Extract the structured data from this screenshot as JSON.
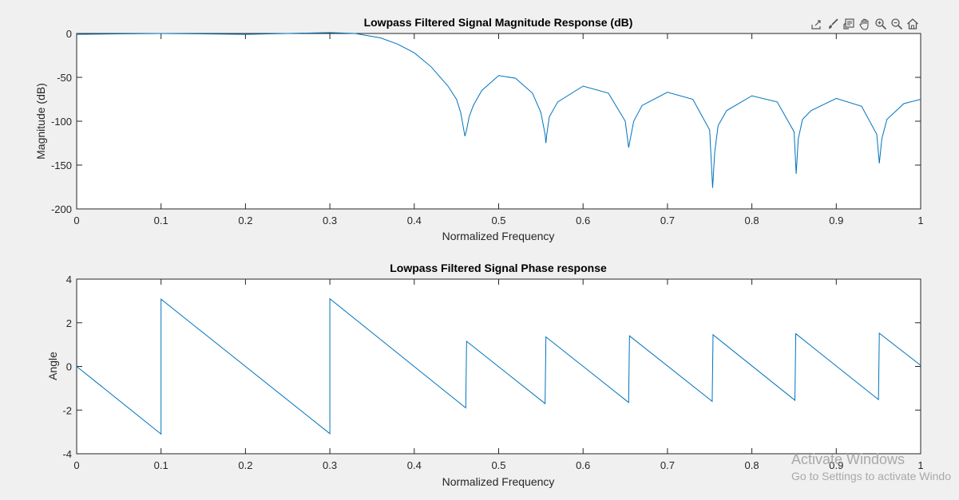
{
  "toolbar": {
    "icons": [
      "export-icon",
      "brush-icon",
      "datatip-icon",
      "pan-icon",
      "zoom-in-icon",
      "zoom-out-icon",
      "home-icon"
    ]
  },
  "watermark": {
    "title": "Activate Windows",
    "subtitle": "Go to Settings to activate Windo"
  },
  "colors": {
    "line": "#0072bd",
    "axes_bg": "#ffffff",
    "figure_bg": "#f0f0f0"
  },
  "chart_data": [
    {
      "type": "line",
      "title": "Lowpass Filtered Signal Magnitude Response (dB)",
      "xlabel": "Normalized Frequency",
      "ylabel": "Magnitude (dB)",
      "xlim": [
        0,
        1
      ],
      "ylim": [
        -200,
        0
      ],
      "xticks": [
        0,
        0.1,
        0.2,
        0.3,
        0.4,
        0.5,
        0.6,
        0.7,
        0.8,
        0.9,
        1
      ],
      "xticklabels": [
        "0",
        "0.1",
        "0.2",
        "0.3",
        "0.4",
        "0.5",
        "0.6",
        "0.7",
        "0.8",
        "0.9",
        "1"
      ],
      "yticks": [
        0,
        -50,
        -100,
        -150,
        -200
      ],
      "yticklabels": [
        "0",
        "-50",
        "-100",
        "-150",
        "-200"
      ],
      "grid": false,
      "series": [
        {
          "x": [
            0,
            0.05,
            0.1,
            0.15,
            0.2,
            0.25,
            0.3,
            0.33,
            0.36,
            0.38,
            0.4,
            0.42,
            0.44,
            0.45,
            0.455,
            0.46,
            0.462,
            0.465,
            0.47,
            0.48,
            0.5,
            0.52,
            0.54,
            0.55,
            0.555,
            0.556,
            0.557,
            0.56,
            0.57,
            0.6,
            0.63,
            0.65,
            0.654,
            0.656,
            0.66,
            0.67,
            0.7,
            0.73,
            0.75,
            0.7535,
            0.756,
            0.76,
            0.77,
            0.8,
            0.83,
            0.85,
            0.8525,
            0.855,
            0.86,
            0.87,
            0.9,
            0.93,
            0.948,
            0.951,
            0.954,
            0.96,
            0.98,
            1.0
          ],
          "y": [
            -1,
            -0.5,
            0,
            -0.5,
            -1,
            0,
            1,
            0,
            -5,
            -12,
            -22,
            -38,
            -60,
            -75,
            -90,
            -117,
            -110,
            -95,
            -82,
            -65,
            -48,
            -51,
            -68,
            -90,
            -115,
            -125,
            -115,
            -95,
            -78,
            -60,
            -68,
            -100,
            -130,
            -120,
            -100,
            -82,
            -67,
            -75,
            -110,
            -176,
            -135,
            -105,
            -88,
            -71,
            -78,
            -112,
            -160,
            -120,
            -98,
            -88,
            -74,
            -83,
            -115,
            -148,
            -120,
            -98,
            -80,
            -75
          ]
        }
      ]
    },
    {
      "type": "line",
      "title": "Lowpass Filtered Signal Phase response",
      "xlabel": "Normalized Frequency",
      "ylabel": "Angle",
      "xlim": [
        0,
        1
      ],
      "ylim": [
        -4,
        4
      ],
      "xticks": [
        0,
        0.1,
        0.2,
        0.3,
        0.4,
        0.5,
        0.6,
        0.7,
        0.8,
        0.9,
        1
      ],
      "xticklabels": [
        "0",
        "0.1",
        "0.2",
        "0.3",
        "0.4",
        "0.5",
        "0.6",
        "0.7",
        "0.8",
        "0.9",
        "1"
      ],
      "yticks": [
        4,
        2,
        0,
        -2,
        -4
      ],
      "yticklabels": [
        "4",
        "2",
        "0",
        "-2",
        "-4"
      ],
      "grid": false,
      "series": [
        {
          "x": [
            0,
            0.1,
            0.1,
            0.3,
            0.3,
            0.461,
            0.462,
            0.555,
            0.556,
            0.654,
            0.655,
            0.753,
            0.754,
            0.851,
            0.852,
            0.95,
            0.951,
            1.0
          ],
          "y": [
            0,
            -3.1,
            3.08,
            -3.08,
            3.1,
            -1.9,
            1.15,
            -1.7,
            1.35,
            -1.65,
            1.4,
            -1.6,
            1.45,
            -1.55,
            1.5,
            -1.52,
            1.52,
            0.05
          ]
        }
      ]
    }
  ]
}
